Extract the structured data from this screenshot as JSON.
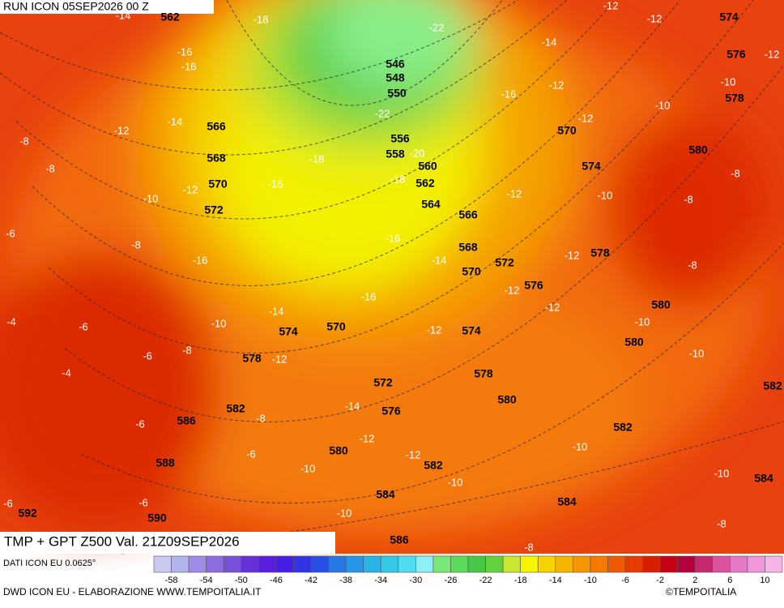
{
  "header": {
    "run": "RUN ICON 05SEP2026 00 Z",
    "title": "TMP + GPT Z500 Val. 21Z09SEP2026"
  },
  "map": {
    "height_labels": [
      562,
      546,
      548,
      550,
      556,
      558,
      560,
      562,
      564,
      566,
      568,
      570,
      572,
      576,
      578,
      580,
      580,
      574,
      578,
      580,
      582,
      584,
      582,
      584,
      586,
      580,
      576,
      572,
      570,
      574,
      578,
      582,
      586,
      588,
      590,
      592,
      572,
      570,
      568,
      566,
      570,
      574,
      574,
      576,
      578,
      580,
      582,
      584
    ],
    "temperature_labels": [
      -14,
      -18,
      -16,
      -16,
      -14,
      -12,
      -8,
      -8,
      -10,
      -12,
      -6,
      -8,
      -16,
      -16,
      -18,
      -22,
      -22,
      -20,
      -18,
      -16,
      -14,
      -12,
      -12,
      -10,
      -10,
      -12,
      -12,
      -12,
      -8,
      -8,
      -8,
      -10,
      -12,
      -16,
      -14,
      -16,
      -12,
      -12,
      -12,
      -10,
      -10,
      -14,
      -10,
      -8,
      -12,
      -12,
      -4,
      -6,
      -6,
      -4,
      -6,
      -8,
      -6,
      -6,
      -6,
      -10,
      -12,
      -12,
      -14,
      -10,
      -10,
      -10,
      -10,
      -8,
      -8
    ]
  },
  "legend": {
    "ticks": [
      -58,
      -54,
      -50,
      -46,
      -42,
      -38,
      -34,
      -30,
      -26,
      -22,
      -18,
      -14,
      -10,
      -6,
      -2,
      2,
      6,
      10
    ],
    "colors": [
      "#c8c8f0",
      "#b4b4ec",
      "#a08ce6",
      "#8c6ee0",
      "#7850dc",
      "#6432d6",
      "#5a1ee0",
      "#461ee6",
      "#3232e6",
      "#2850e6",
      "#2878e6",
      "#2896e6",
      "#28b4e6",
      "#32c8e6",
      "#50dcf0",
      "#8cf0f5",
      "#78e678",
      "#5adc5a",
      "#46c846",
      "#64d23c",
      "#c8e632",
      "#f5f500",
      "#f5d200",
      "#f5b400",
      "#f59600",
      "#f57800",
      "#f05a00",
      "#e63c00",
      "#dc1e00",
      "#c80014",
      "#b4003c",
      "#c8286e",
      "#dc50a0",
      "#e678c8",
      "#f096dc",
      "#f5b4e6"
    ]
  },
  "footer": {
    "data_source": "DATI ICON EU 0.0625°",
    "credits": "DWD ICON EU - ELABORAZIONE WWW.TEMPOITALIA.IT",
    "copyright": "©TEMPOITALIA"
  }
}
